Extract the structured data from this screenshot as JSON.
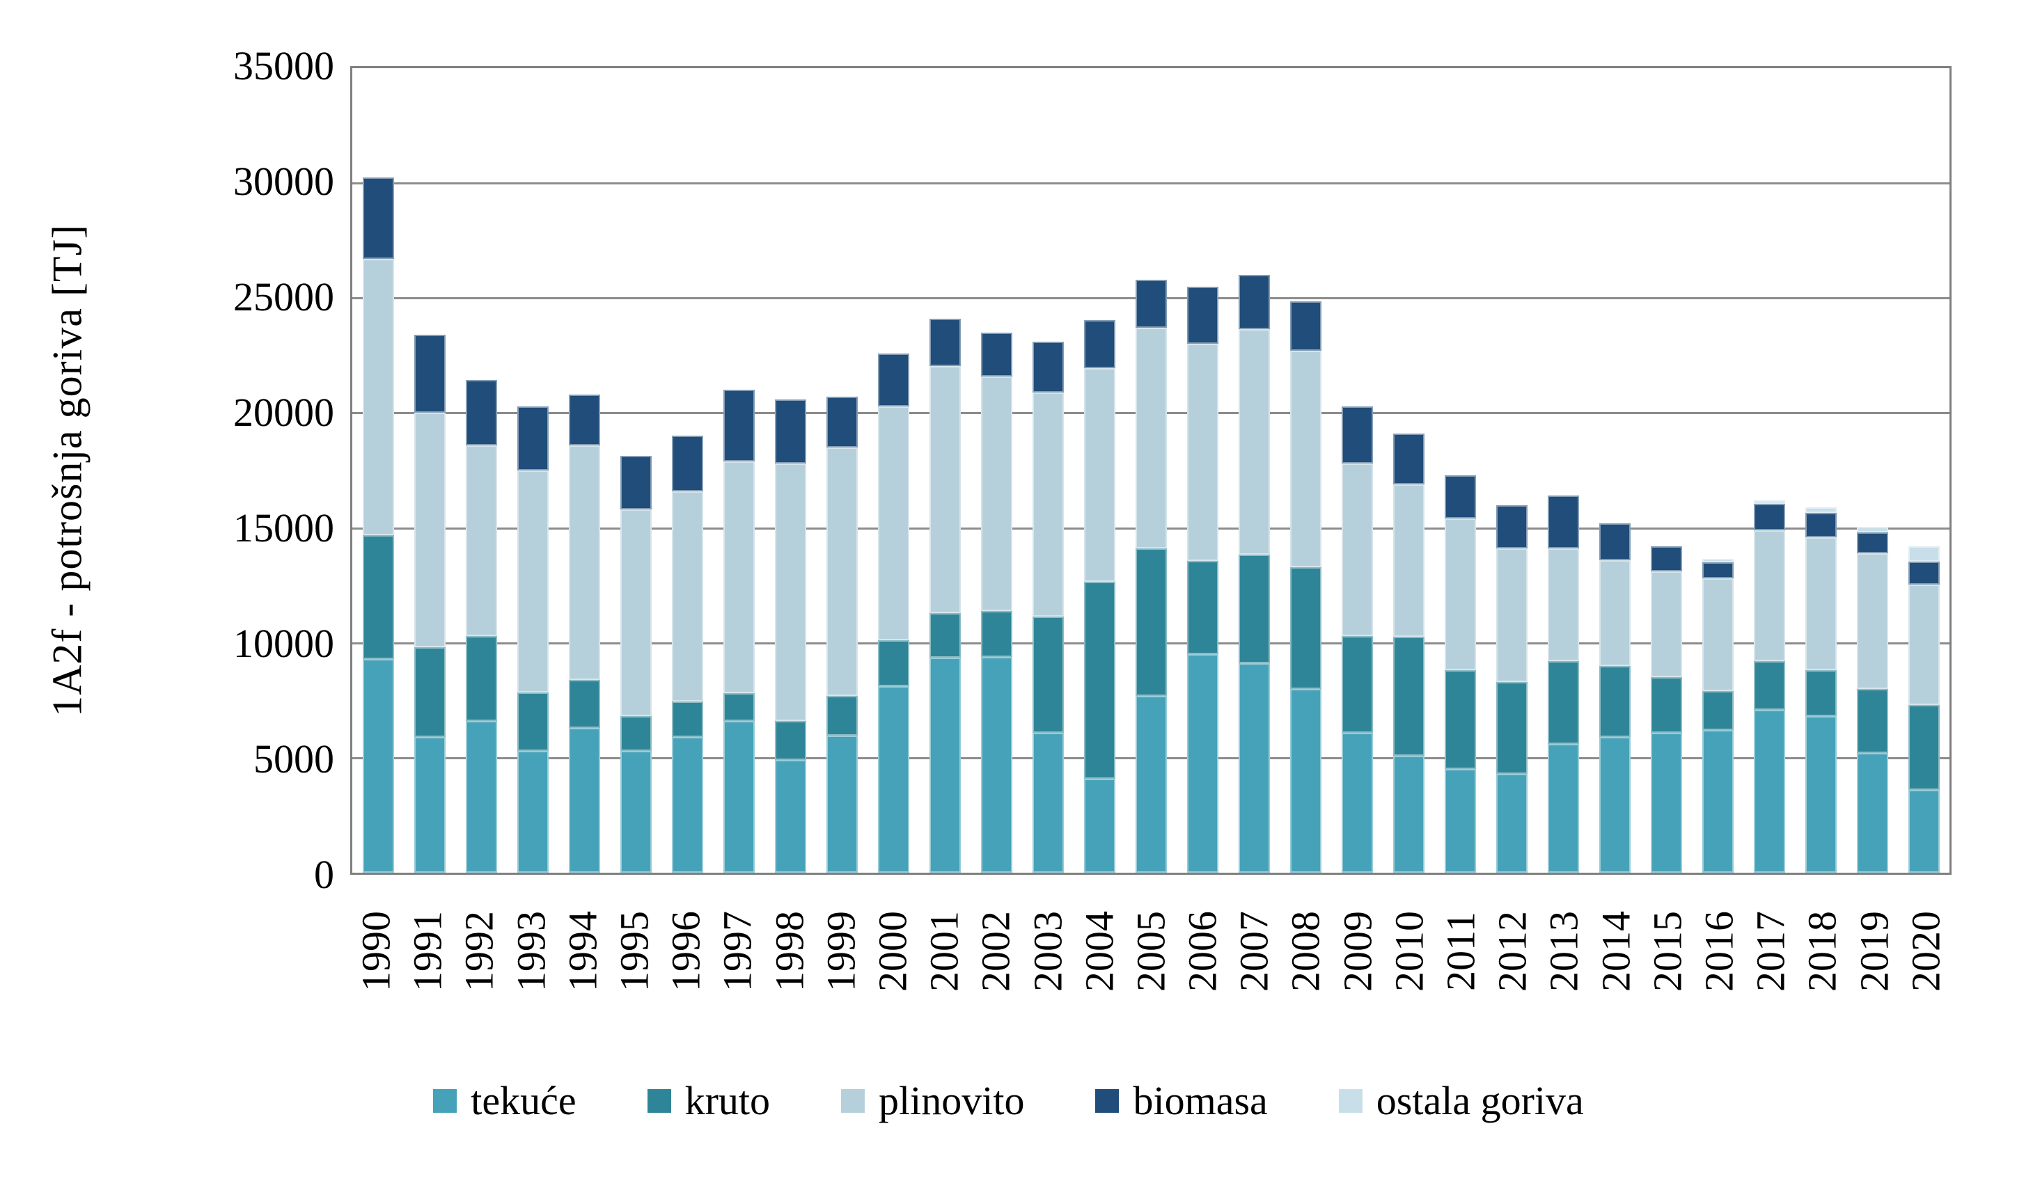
{
  "chart_data": {
    "type": "bar",
    "stacked": true,
    "title": "",
    "xlabel": "",
    "ylabel": "1A2f - potrošnja goriva [TJ]",
    "ylim": [
      0,
      35000
    ],
    "yticks": [
      0,
      5000,
      10000,
      15000,
      20000,
      25000,
      30000,
      35000
    ],
    "grid": "horizontal",
    "legend_position": "bottom",
    "categories": [
      "1990",
      "1991",
      "1992",
      "1993",
      "1994",
      "1995",
      "1996",
      "1997",
      "1998",
      "1999",
      "2000",
      "2001",
      "2002",
      "2003",
      "2004",
      "2005",
      "2006",
      "2007",
      "2008",
      "2009",
      "2010",
      "2011",
      "2012",
      "2013",
      "2014",
      "2015",
      "2016",
      "2017",
      "2018",
      "2019",
      "2020"
    ],
    "series": [
      {
        "name": "tekuće",
        "color": "#46a2b8",
        "values": [
          9300,
          5900,
          6600,
          5300,
          6300,
          5300,
          5900,
          6600,
          4900,
          5950,
          8100,
          9350,
          9400,
          6100,
          4100,
          7700,
          9500,
          9100,
          8000,
          6100,
          5100,
          4500,
          4300,
          5600,
          5900,
          6100,
          6200,
          7100,
          6800,
          5200,
          3600
        ]
      },
      {
        "name": "kruto",
        "color": "#2f8598",
        "values": [
          5400,
          3900,
          3700,
          2550,
          2100,
          1500,
          1550,
          1200,
          1700,
          1750,
          2000,
          1950,
          2000,
          5050,
          8550,
          6400,
          4050,
          4750,
          5300,
          4200,
          5150,
          4300,
          4000,
          3600,
          3100,
          2400,
          1700,
          2100,
          2000,
          2800,
          3700
        ]
      },
      {
        "name": "plinovito",
        "color": "#b6d0db",
        "values": [
          12000,
          10200,
          8300,
          9650,
          10200,
          9000,
          9150,
          10100,
          11200,
          10800,
          10200,
          10750,
          10200,
          9750,
          9300,
          9600,
          9450,
          9800,
          9400,
          7500,
          6650,
          6600,
          5800,
          4900,
          4600,
          4600,
          4900,
          5700,
          5800,
          5900,
          5250
        ]
      },
      {
        "name": "biomasa",
        "color": "#204d79",
        "values": [
          3550,
          3400,
          2850,
          2800,
          2200,
          2350,
          2400,
          3100,
          2800,
          2200,
          2300,
          2050,
          1900,
          2200,
          2100,
          2100,
          2500,
          2350,
          2150,
          2500,
          2200,
          1900,
          1900,
          2300,
          1600,
          1100,
          700,
          1150,
          1050,
          900,
          1000
        ]
      },
      {
        "name": "ostala goriva",
        "color": "#c8dfe9",
        "values": [
          0,
          0,
          0,
          0,
          0,
          0,
          0,
          0,
          0,
          0,
          0,
          0,
          0,
          0,
          0,
          0,
          0,
          0,
          0,
          0,
          0,
          0,
          0,
          0,
          0,
          0,
          150,
          150,
          250,
          250,
          650
        ]
      }
    ]
  },
  "colors": {
    "background": "#ffffff",
    "frame": "#7f7f7f",
    "gridline": "#8c8c8c",
    "text": "#000000"
  }
}
